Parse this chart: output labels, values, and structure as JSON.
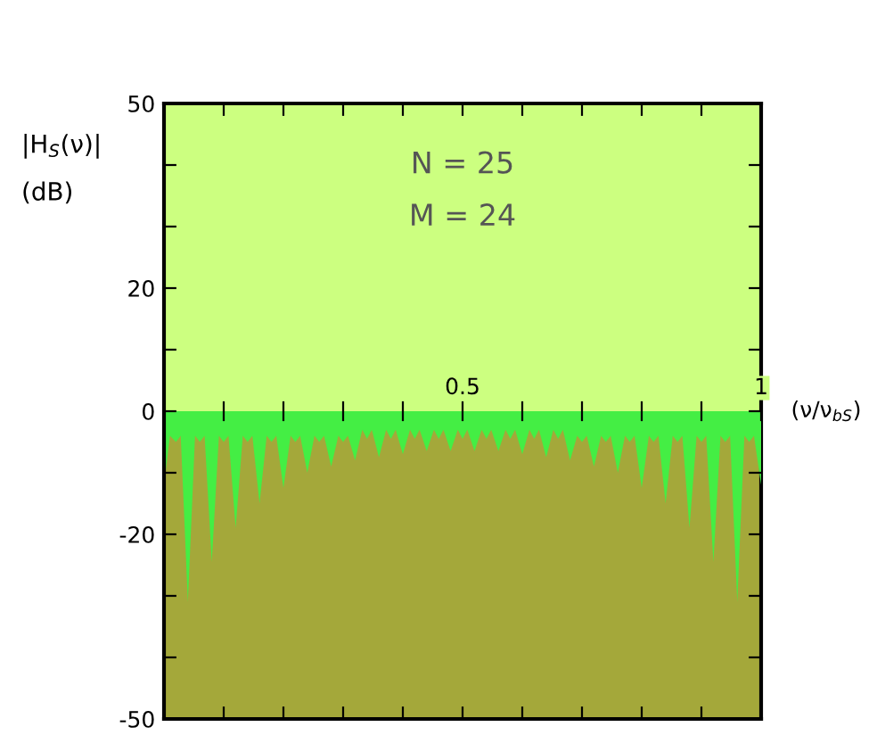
{
  "chart_data": {
    "type": "area",
    "ylabel": "|H$_{S}$(ν)|\n(dB)",
    "xlabel": "(ν/ν$_{bS}$)",
    "annotations": [
      "N = 25",
      "M = 24"
    ],
    "x": [
      0,
      0.01,
      0.02,
      0.028,
      0.04,
      0.052,
      0.06,
      0.068,
      0.08,
      0.092,
      0.1,
      0.108,
      0.12,
      0.132,
      0.14,
      0.148,
      0.16,
      0.172,
      0.18,
      0.188,
      0.2,
      0.212,
      0.22,
      0.228,
      0.24,
      0.252,
      0.26,
      0.268,
      0.28,
      0.292,
      0.3,
      0.308,
      0.32,
      0.332,
      0.34,
      0.348,
      0.36,
      0.372,
      0.38,
      0.388,
      0.4,
      0.412,
      0.42,
      0.428,
      0.44,
      0.452,
      0.46,
      0.468,
      0.48,
      0.492,
      0.5,
      0.508,
      0.52,
      0.532,
      0.54,
      0.548,
      0.56,
      0.572,
      0.58,
      0.588,
      0.6,
      0.612,
      0.62,
      0.628,
      0.64,
      0.652,
      0.66,
      0.668,
      0.68,
      0.692,
      0.7,
      0.708,
      0.72,
      0.732,
      0.74,
      0.748,
      0.76,
      0.772,
      0.78,
      0.788,
      0.8,
      0.812,
      0.82,
      0.828,
      0.84,
      0.852,
      0.86,
      0.868,
      0.88,
      0.892,
      0.9,
      0.908,
      0.92,
      0.932,
      0.94,
      0.948,
      0.96,
      0.972,
      0.98,
      0.988,
      1
    ],
    "series": [
      {
        "color": "#44ee44",
        "values": [
          -12,
          -4,
          -5,
          -4,
          -31,
          -4,
          -5,
          -4,
          -24.5,
          -4,
          -5,
          -4,
          -19,
          -4,
          -5,
          -4,
          -15,
          -4,
          -5,
          -4,
          -12.5,
          -4,
          -5,
          -4,
          -10,
          -4,
          -5,
          -4,
          -9,
          -4,
          -5,
          -4,
          -8,
          -3,
          -4.5,
          -3,
          -7.5,
          -3,
          -4.5,
          -3,
          -7,
          -3,
          -4.5,
          -3,
          -6.5,
          -3,
          -4.5,
          -3,
          -6.5,
          -3,
          -4.5,
          -3,
          -6.5,
          -3,
          -4.5,
          -3,
          -6.5,
          -3,
          -4.5,
          -3,
          -7,
          -3,
          -4.5,
          -3,
          -7.5,
          -3,
          -4.5,
          -3,
          -8,
          -4,
          -5,
          -4,
          -9,
          -4,
          -5,
          -4,
          -10,
          -4,
          -5,
          -4,
          -12.5,
          -4,
          -5,
          -4,
          -15,
          -4,
          -5,
          -4,
          -19,
          -4,
          -5,
          -4,
          -24.5,
          -4,
          -5,
          -4,
          -31,
          -4,
          -5,
          -4,
          -12
        ]
      }
    ],
    "bands": [
      {
        "axis": "y",
        "from": 0,
        "to": 50,
        "color": "#ccff80"
      },
      {
        "axis": "y",
        "from": -50,
        "to": 0,
        "color": "#a4a83a"
      }
    ],
    "xlim": [
      0,
      1
    ],
    "ylim": [
      -50,
      50
    ],
    "xticks": [
      {
        "value": 0,
        "label": null
      },
      {
        "value": 0.1,
        "label": null
      },
      {
        "value": 0.2,
        "label": null
      },
      {
        "value": 0.3,
        "label": null
      },
      {
        "value": 0.4,
        "label": null
      },
      {
        "value": 0.5,
        "label": "0.5"
      },
      {
        "value": 0.6,
        "label": null
      },
      {
        "value": 0.7,
        "label": null
      },
      {
        "value": 0.8,
        "label": null
      },
      {
        "value": 0.9,
        "label": null
      },
      {
        "value": 1,
        "label": "1"
      }
    ],
    "yticks": [
      -50,
      {
        "value": -40,
        "label": null
      },
      {
        "value": -30,
        "label": null
      },
      -20,
      {
        "value": -10,
        "label": null
      },
      0,
      {
        "value": 10,
        "label": null
      },
      20,
      {
        "value": 30,
        "label": null
      },
      {
        "value": 40,
        "label": null
      },
      50
    ],
    "grid": false,
    "legend": false
  }
}
